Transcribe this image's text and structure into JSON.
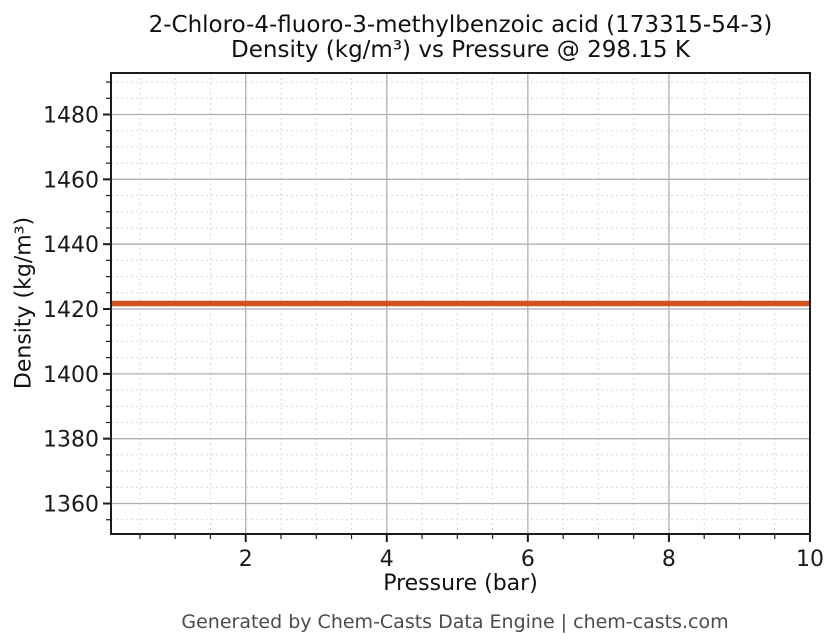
{
  "chart_data": {
    "type": "line",
    "title": "2-Chloro-4-fluoro-3-methylbenzoic acid (173315-54-3)",
    "subtitle": "Density (kg/m³) vs Pressure @ 298.15 K",
    "xlabel": "Pressure (bar)",
    "ylabel": "Density (kg/m³)",
    "xlim": [
      0.09,
      10
    ],
    "ylim": [
      1350.6,
      1492.8
    ],
    "xticks": [
      2,
      4,
      6,
      8,
      10
    ],
    "yticks": [
      1360,
      1380,
      1400,
      1420,
      1440,
      1460,
      1480
    ],
    "x_minor_step": 0.5,
    "y_minor_step": 5,
    "grid": {
      "major": true,
      "minor": true
    },
    "legend": "none",
    "series": [
      {
        "name": "Density",
        "color": "#d2521e",
        "x": [
          0.09,
          10
        ],
        "y": [
          1421.7,
          1421.7
        ]
      }
    ],
    "style": {
      "spine_color": "#1c1c1c",
      "major_grid_color": "#b0b0b0",
      "minor_grid_color": "#d9d9d9",
      "tick_label_color": "#1a1a1a",
      "title_color": "#111111",
      "footer_color": "#4b4b4b",
      "background": "#ffffff"
    }
  },
  "footer": {
    "text": "Generated by Chem-Casts Data Engine | chem-casts.com"
  }
}
